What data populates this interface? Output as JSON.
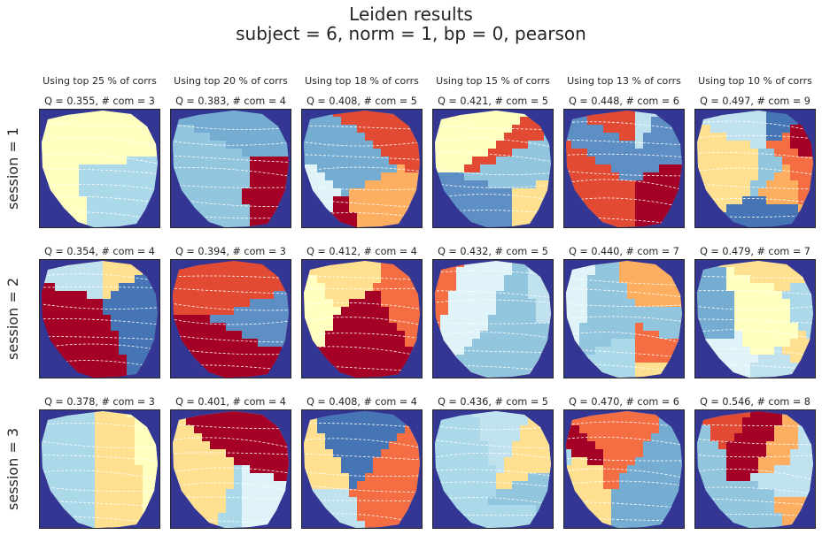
{
  "colors": {
    "background": "#333692",
    "palette": [
      "#a50026",
      "#e34a33",
      "#f46d43",
      "#fdae61",
      "#fee090",
      "#ffffbf",
      "#e0f3f8",
      "#c0e2ef",
      "#abd9e9",
      "#92c5de",
      "#74add1",
      "#5e8fc4",
      "#4575b4"
    ],
    "boundary": "#ffffff",
    "frame": "#262626"
  },
  "chart_data": {
    "type": "heatmap",
    "title": "Leiden results",
    "subtitle": "subject = 6,   norm = 1,   bp = 0,   pearson",
    "columns": [
      "Using top 25 % of corrs",
      "Using top 20 % of corrs",
      "Using top 18 % of corrs",
      "Using top 15 % of corrs",
      "Using top 13 % of corrs",
      "Using top 10 % of corrs"
    ],
    "rows": [
      "session = 1",
      "session = 2",
      "session = 3"
    ],
    "panels": [
      [
        {
          "title": "Q = 0.355,  # com = 3",
          "Q": 0.355,
          "communities": 3
        },
        {
          "title": "Q = 0.383,  # com = 4",
          "Q": 0.383,
          "communities": 4
        },
        {
          "title": "Q = 0.408,  # com = 5",
          "Q": 0.408,
          "communities": 5
        },
        {
          "title": "Q = 0.421,  # com = 5",
          "Q": 0.421,
          "communities": 5
        },
        {
          "title": "Q = 0.448,  # com = 6",
          "Q": 0.448,
          "communities": 6
        },
        {
          "title": "Q = 0.497,  # com = 9",
          "Q": 0.497,
          "communities": 9
        }
      ],
      [
        {
          "title": "Q = 0.354,  # com = 4",
          "Q": 0.354,
          "communities": 4
        },
        {
          "title": "Q = 0.394,  # com = 3",
          "Q": 0.394,
          "communities": 3
        },
        {
          "title": "Q = 0.412,  # com = 4",
          "Q": 0.412,
          "communities": 4
        },
        {
          "title": "Q = 0.432,  # com = 5",
          "Q": 0.432,
          "communities": 5
        },
        {
          "title": "Q = 0.440,  # com = 7",
          "Q": 0.44,
          "communities": 7
        },
        {
          "title": "Q = 0.479,  # com = 7",
          "Q": 0.479,
          "communities": 7
        }
      ],
      [
        {
          "title": "Q = 0.378,  # com = 3",
          "Q": 0.378,
          "communities": 3
        },
        {
          "title": "Q = 0.401,  # com = 4",
          "Q": 0.401,
          "communities": 4
        },
        {
          "title": "Q = 0.408,  # com = 4",
          "Q": 0.408,
          "communities": 4
        },
        {
          "title": "Q = 0.436,  # com = 5",
          "Q": 0.436,
          "communities": 5
        },
        {
          "title": "Q = 0.470,  # com = 6",
          "Q": 0.47,
          "communities": 6
        },
        {
          "title": "Q = 0.546,  # com = 8",
          "Q": 0.546,
          "communities": 8
        }
      ]
    ]
  }
}
